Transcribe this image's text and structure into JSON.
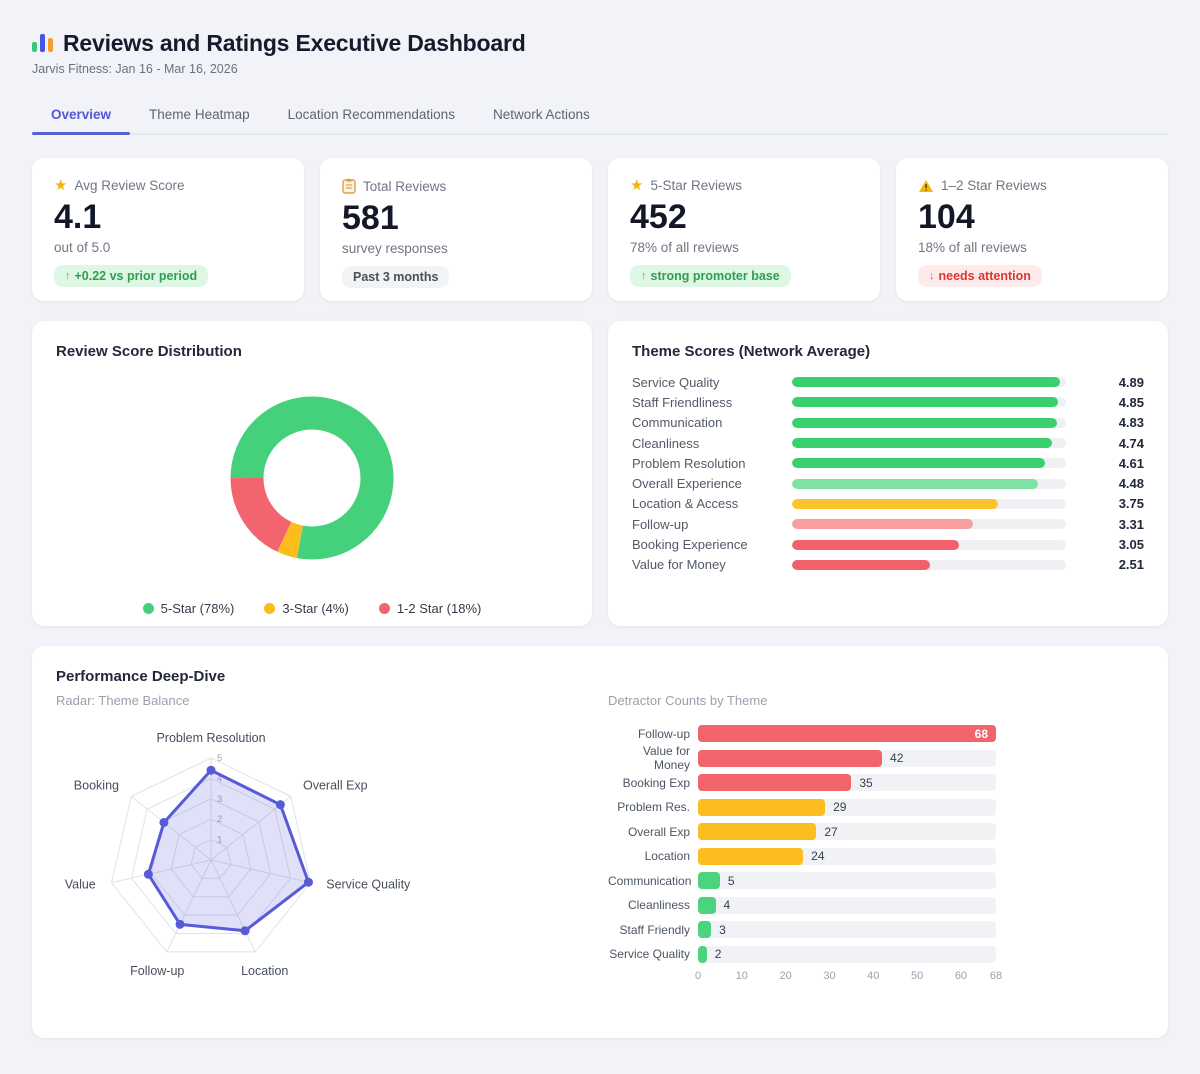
{
  "header": {
    "title": "Reviews and Ratings Executive Dashboard",
    "subtitle": "Jarvis Fitness: Jan 16 - Mar 16, 2026",
    "logo_colors": [
      "#3bc876",
      "#4755e6",
      "#f2a12c"
    ]
  },
  "tabs": [
    {
      "label": "Overview",
      "active": true
    },
    {
      "label": "Theme Heatmap",
      "active": false
    },
    {
      "label": "Location Recommendations",
      "active": false
    },
    {
      "label": "Network Actions",
      "active": false
    }
  ],
  "kpis": [
    {
      "icon_glyph": "★",
      "icon_name": "star-icon",
      "label": "Avg Review Score",
      "value": "4.1",
      "sub": "out of 5.0",
      "badge": {
        "arrow": "↑",
        "text": "+0.22 vs prior period",
        "tone": "green"
      }
    },
    {
      "icon_glyph": "clipboard",
      "icon_name": "clipboard-icon",
      "label": "Total Reviews",
      "value": "581",
      "sub": "survey responses",
      "badge": {
        "arrow": "",
        "text": "Past 3 months",
        "tone": "gray"
      }
    },
    {
      "icon_glyph": "★",
      "icon_name": "star-icon",
      "label": "5-Star Reviews",
      "value": "452",
      "sub": "78% of all reviews",
      "badge": {
        "arrow": "↑",
        "text": "strong promoter base",
        "tone": "green"
      }
    },
    {
      "icon_glyph": "warning",
      "icon_name": "warning-icon",
      "label": "1–2 Star Reviews",
      "value": "104",
      "sub": "18% of all reviews",
      "badge": {
        "arrow": "↓",
        "text": "needs attention",
        "tone": "red"
      }
    }
  ],
  "panels": {
    "deep_dive_title": "Performance Deep-Dive"
  },
  "chart_data": [
    {
      "type": "pie",
      "title": "Review Score Distribution",
      "labels": [
        "5-Star",
        "3-Star",
        "1-2 Star"
      ],
      "values": [
        78,
        4,
        18
      ],
      "unit": "percent",
      "colors": [
        "#45d07c",
        "#fcbc1c",
        "#f2646e"
      ],
      "hole": 0.6,
      "start_angle_deg_cw_from_top": 270,
      "legend_position": "bottom",
      "legend": [
        "5-Star (78%)",
        "3-Star (4%)",
        "1-2 Star (18%)"
      ]
    },
    {
      "type": "bar",
      "title": "Theme Scores (Network Average)",
      "orientation": "horizontal",
      "categories": [
        "Service Quality",
        "Staff Friendliness",
        "Communication",
        "Cleanliness",
        "Problem Resolution",
        "Overall Experience",
        "Location & Access",
        "Follow-up",
        "Booking Experience",
        "Value for Money"
      ],
      "values": [
        4.89,
        4.85,
        4.83,
        4.74,
        4.61,
        4.48,
        3.75,
        3.31,
        3.05,
        2.51
      ],
      "value_labels": [
        "4.89",
        "4.85",
        "4.83",
        "4.74",
        "4.61",
        "4.48",
        "3.75",
        "3.31",
        "3.05",
        "2.51"
      ],
      "colors": [
        "#3bd06e",
        "#3bd06e",
        "#3bd06e",
        "#3bd06e",
        "#3bd06e",
        "#7fe2a4",
        "#fcc42c",
        "#f89e9e",
        "#f1616b",
        "#f1616b"
      ],
      "xlim": [
        0,
        5
      ],
      "grid": false
    },
    {
      "type": "radar",
      "title": "Radar: Theme Balance",
      "categories": [
        "Problem Resolution",
        "Overall Exp",
        "Service Quality",
        "Location",
        "Follow-up",
        "Value",
        "Booking"
      ],
      "values": [
        4.4,
        4.35,
        4.9,
        3.85,
        3.5,
        3.15,
        2.95
      ],
      "rlim": [
        0,
        5
      ],
      "rticks": [
        1,
        2,
        3,
        4,
        5
      ],
      "line_color": "#575ad9",
      "fill_color": "rgba(99,101,222,0.20)",
      "grid_color": "#dfe2ea"
    },
    {
      "type": "bar",
      "title": "Detractor Counts by Theme",
      "orientation": "horizontal",
      "categories": [
        "Follow-up",
        "Value for Money",
        "Booking Exp",
        "Problem Res.",
        "Overall Exp",
        "Location",
        "Communication",
        "Cleanliness",
        "Staff Friendly",
        "Service Quality"
      ],
      "values": [
        68,
        42,
        35,
        29,
        27,
        24,
        5,
        4,
        3,
        2
      ],
      "colors": [
        "#f1646c",
        "#f1646c",
        "#f1646c",
        "#fcbe1f",
        "#fcbe1f",
        "#fcbe1f",
        "#4cd37d",
        "#4cd37d",
        "#4cd37d",
        "#4cd37d"
      ],
      "xticks": [
        0,
        10,
        20,
        30,
        40,
        50,
        60,
        68
      ],
      "xlim": [
        0,
        68
      ],
      "grid": false
    }
  ]
}
